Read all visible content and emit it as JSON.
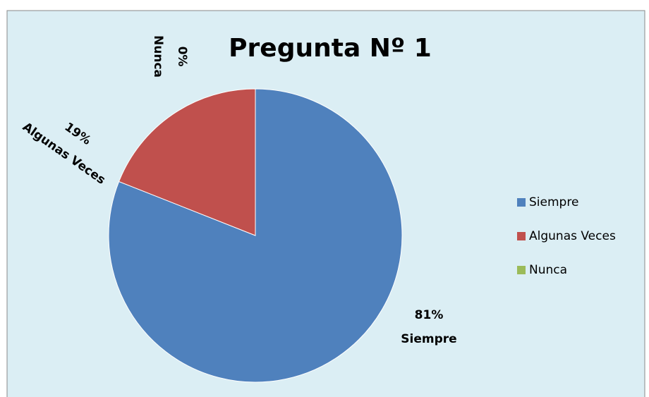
{
  "chart_data": {
    "type": "pie",
    "title": "Pregunta Nº 1",
    "categories": [
      "Siempre",
      "Algunas Veces",
      "Nunca"
    ],
    "values": [
      81,
      19,
      0
    ],
    "value_labels": [
      "81%",
      "19%",
      "0%"
    ],
    "colors": [
      "#4f81bd",
      "#c0504d",
      "#9bbb59"
    ],
    "legend": "right"
  }
}
